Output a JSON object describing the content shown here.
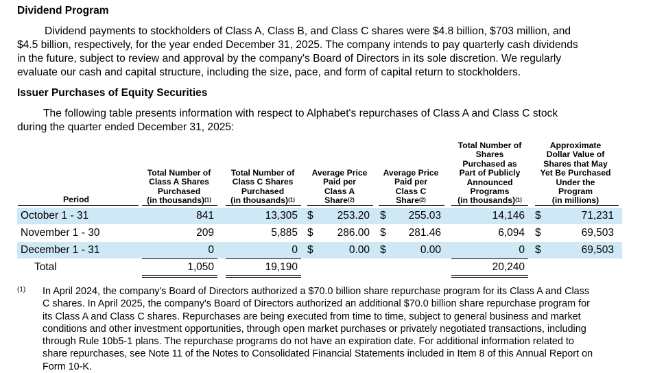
{
  "dividend": {
    "heading": "Dividend Program",
    "lines": [
      "Dividend payments to stockholders of Class A, Class B, and Class C shares were $4.8 billion, $703 million, and",
      "$4.5 billion, respectively, for the year ended December 31, 2025. The company intends to pay quarterly cash dividends",
      "in the future, subject to review and approval by the company's Board of Directors in its sole discretion. We regularly",
      "evaluate our cash and capital structure, including the size, pace, and form of capital return to stockholders."
    ]
  },
  "purchases": {
    "heading": "Issuer Purchases of Equity Securities",
    "intro_lines": [
      "The following table presents information with respect to Alphabet's repurchases of Class A and Class C stock",
      "during the quarter ended December 31, 2025:"
    ]
  },
  "table": {
    "headers": {
      "period": "Period",
      "class_a": [
        "Total Number of",
        "Class A Shares",
        "Purchased",
        "(in thousands)"
      ],
      "class_a_note": "(1)",
      "class_c": [
        "Total Number of",
        "Class C Shares",
        "Purchased",
        "(in thousands)"
      ],
      "class_c_note": "(1)",
      "avg_a": [
        "Average Price",
        "Paid per",
        "Class A",
        "Share"
      ],
      "avg_a_note": "(2)",
      "avg_c": [
        "Average Price",
        "Paid per",
        "Class C",
        "Share"
      ],
      "avg_c_note": "(2)",
      "program_shares": [
        "Total Number of",
        "Shares",
        "Purchased as",
        "Part of Publicly",
        "Announced",
        "Programs",
        "(in thousands)"
      ],
      "program_shares_note": "(1)",
      "remaining_value": [
        "Approximate",
        "Dollar Value of",
        "Shares that May",
        "Yet Be Purchased",
        "Under the",
        "Program",
        "(in millions)"
      ]
    },
    "rows": [
      {
        "period": "October 1 - 31",
        "class_a": "841",
        "class_c": "13,305",
        "cur1": "$",
        "avg_a": "253.20",
        "cur2": "$",
        "avg_c": "255.03",
        "program_shares": "14,146",
        "cur3": "$",
        "remaining": "71,231"
      },
      {
        "period": "November 1 - 30",
        "class_a": "209",
        "class_c": "5,885",
        "cur1": "$",
        "avg_a": "286.00",
        "cur2": "$",
        "avg_c": "281.46",
        "program_shares": "6,094",
        "cur3": "$",
        "remaining": "69,503"
      },
      {
        "period": "December 1 - 31",
        "class_a": "0",
        "class_c": "0",
        "cur1": "$",
        "avg_a": "0.00",
        "cur2": "$",
        "avg_c": "0.00",
        "program_shares": "0",
        "cur3": "$",
        "remaining": "69,503"
      }
    ],
    "total": {
      "label": "Total",
      "class_a": "1,050",
      "class_c": "19,190",
      "program_shares": "20,240"
    }
  },
  "footnote": {
    "marker": "(1)",
    "lines": [
      "In April 2024, the company's Board of Directors authorized a $70.0 billion share repurchase program for its Class A and Class",
      "C shares. In April 2025, the company's Board of Directors authorized an additional $70.0 billion share repurchase program for",
      "its Class A and Class C shares. Repurchases are being executed from time to time, subject to general business and market",
      "conditions and other investment opportunities, through open market purchases or privately negotiated transactions, including",
      "through Rule 10b5-1 plans. The repurchase programs do not have an expiration date. For additional information related to",
      "share repurchases, see Note 11 of the Notes to Consolidated Financial Statements included in Item 8 of this Annual Report on",
      "Form 10-K."
    ]
  }
}
